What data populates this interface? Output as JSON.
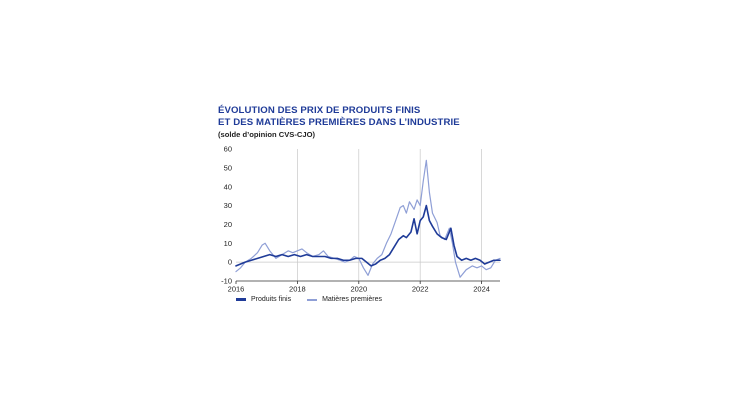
{
  "title_line1": "ÉVOLUTION DES PRIX DE PRODUITS FINIS",
  "title_line2": "ET DES MATIÈRES PREMIÈRES DANS L’INDUSTRIE",
  "subtitle": "(solde d’opinion CVS-CJO)",
  "chart_data": {
    "type": "line",
    "title": "ÉVOLUTION DES PRIX DE PRODUITS FINIS ET DES MATIÈRES PREMIÈRES DANS L’INDUSTRIE",
    "ylabel": "(solde d’opinion CVS-CJO)",
    "xlim": [
      2016,
      2024.6
    ],
    "ylim": [
      -10,
      60
    ],
    "y_ticks": [
      -10,
      0,
      10,
      20,
      30,
      40,
      50,
      60
    ],
    "x_ticks": [
      2016,
      2018,
      2020,
      2022,
      2024
    ],
    "x_tick_labels": [
      "2016",
      "2018",
      "2020",
      "2022",
      "2024"
    ],
    "grid": "vertical",
    "legend_position": "bottom-left",
    "series": [
      {
        "name": "Produits finis",
        "color": "#1f3b98",
        "points": [
          [
            2016.0,
            -2
          ],
          [
            2016.15,
            -1
          ],
          [
            2016.3,
            0
          ],
          [
            2016.5,
            1
          ],
          [
            2016.7,
            2
          ],
          [
            2016.9,
            3
          ],
          [
            2017.1,
            4
          ],
          [
            2017.3,
            3
          ],
          [
            2017.5,
            4
          ],
          [
            2017.7,
            3
          ],
          [
            2017.9,
            4
          ],
          [
            2018.1,
            3
          ],
          [
            2018.3,
            4
          ],
          [
            2018.5,
            3
          ],
          [
            2018.7,
            3
          ],
          [
            2018.9,
            3
          ],
          [
            2019.1,
            2
          ],
          [
            2019.3,
            2
          ],
          [
            2019.5,
            1
          ],
          [
            2019.7,
            1
          ],
          [
            2019.9,
            2
          ],
          [
            2020.1,
            2
          ],
          [
            2020.25,
            0
          ],
          [
            2020.4,
            -2
          ],
          [
            2020.55,
            -1
          ],
          [
            2020.7,
            1
          ],
          [
            2020.85,
            2
          ],
          [
            2021.0,
            4
          ],
          [
            2021.15,
            8
          ],
          [
            2021.3,
            12
          ],
          [
            2021.45,
            14
          ],
          [
            2021.55,
            13
          ],
          [
            2021.7,
            16
          ],
          [
            2021.8,
            23
          ],
          [
            2021.9,
            15
          ],
          [
            2022.0,
            22
          ],
          [
            2022.1,
            24
          ],
          [
            2022.2,
            30
          ],
          [
            2022.3,
            22
          ],
          [
            2022.4,
            19
          ],
          [
            2022.55,
            15
          ],
          [
            2022.7,
            13
          ],
          [
            2022.85,
            12
          ],
          [
            2023.0,
            18
          ],
          [
            2023.1,
            9
          ],
          [
            2023.2,
            3
          ],
          [
            2023.35,
            1
          ],
          [
            2023.5,
            2
          ],
          [
            2023.65,
            1
          ],
          [
            2023.8,
            2
          ],
          [
            2023.95,
            1
          ],
          [
            2024.1,
            -1
          ],
          [
            2024.25,
            0
          ],
          [
            2024.4,
            1
          ],
          [
            2024.6,
            1
          ]
        ]
      },
      {
        "name": "Matières premières",
        "color": "#8f9fd6",
        "points": [
          [
            2016.0,
            -5
          ],
          [
            2016.15,
            -3
          ],
          [
            2016.3,
            0
          ],
          [
            2016.5,
            2
          ],
          [
            2016.7,
            5
          ],
          [
            2016.85,
            9
          ],
          [
            2016.95,
            10
          ],
          [
            2017.1,
            6
          ],
          [
            2017.3,
            2
          ],
          [
            2017.5,
            4
          ],
          [
            2017.7,
            6
          ],
          [
            2017.85,
            5
          ],
          [
            2018.0,
            6
          ],
          [
            2018.15,
            7
          ],
          [
            2018.3,
            5
          ],
          [
            2018.5,
            3
          ],
          [
            2018.7,
            4
          ],
          [
            2018.85,
            6
          ],
          [
            2019.0,
            3
          ],
          [
            2019.2,
            2
          ],
          [
            2019.4,
            1
          ],
          [
            2019.55,
            0
          ],
          [
            2019.7,
            1
          ],
          [
            2019.85,
            3
          ],
          [
            2020.0,
            2
          ],
          [
            2020.15,
            -3
          ],
          [
            2020.3,
            -7
          ],
          [
            2020.45,
            -1
          ],
          [
            2020.6,
            2
          ],
          [
            2020.75,
            4
          ],
          [
            2020.9,
            10
          ],
          [
            2021.05,
            15
          ],
          [
            2021.2,
            22
          ],
          [
            2021.35,
            29
          ],
          [
            2021.45,
            30
          ],
          [
            2021.55,
            26
          ],
          [
            2021.65,
            32
          ],
          [
            2021.8,
            28
          ],
          [
            2021.9,
            33
          ],
          [
            2022.0,
            30
          ],
          [
            2022.1,
            43
          ],
          [
            2022.2,
            54
          ],
          [
            2022.3,
            37
          ],
          [
            2022.4,
            26
          ],
          [
            2022.55,
            21
          ],
          [
            2022.65,
            14
          ],
          [
            2022.8,
            12
          ],
          [
            2022.95,
            18
          ],
          [
            2023.05,
            10
          ],
          [
            2023.15,
            0
          ],
          [
            2023.3,
            -8
          ],
          [
            2023.5,
            -4
          ],
          [
            2023.7,
            -2
          ],
          [
            2023.85,
            -3
          ],
          [
            2024.0,
            -2
          ],
          [
            2024.15,
            -4
          ],
          [
            2024.3,
            -3
          ],
          [
            2024.45,
            1
          ],
          [
            2024.6,
            2
          ]
        ]
      }
    ]
  }
}
